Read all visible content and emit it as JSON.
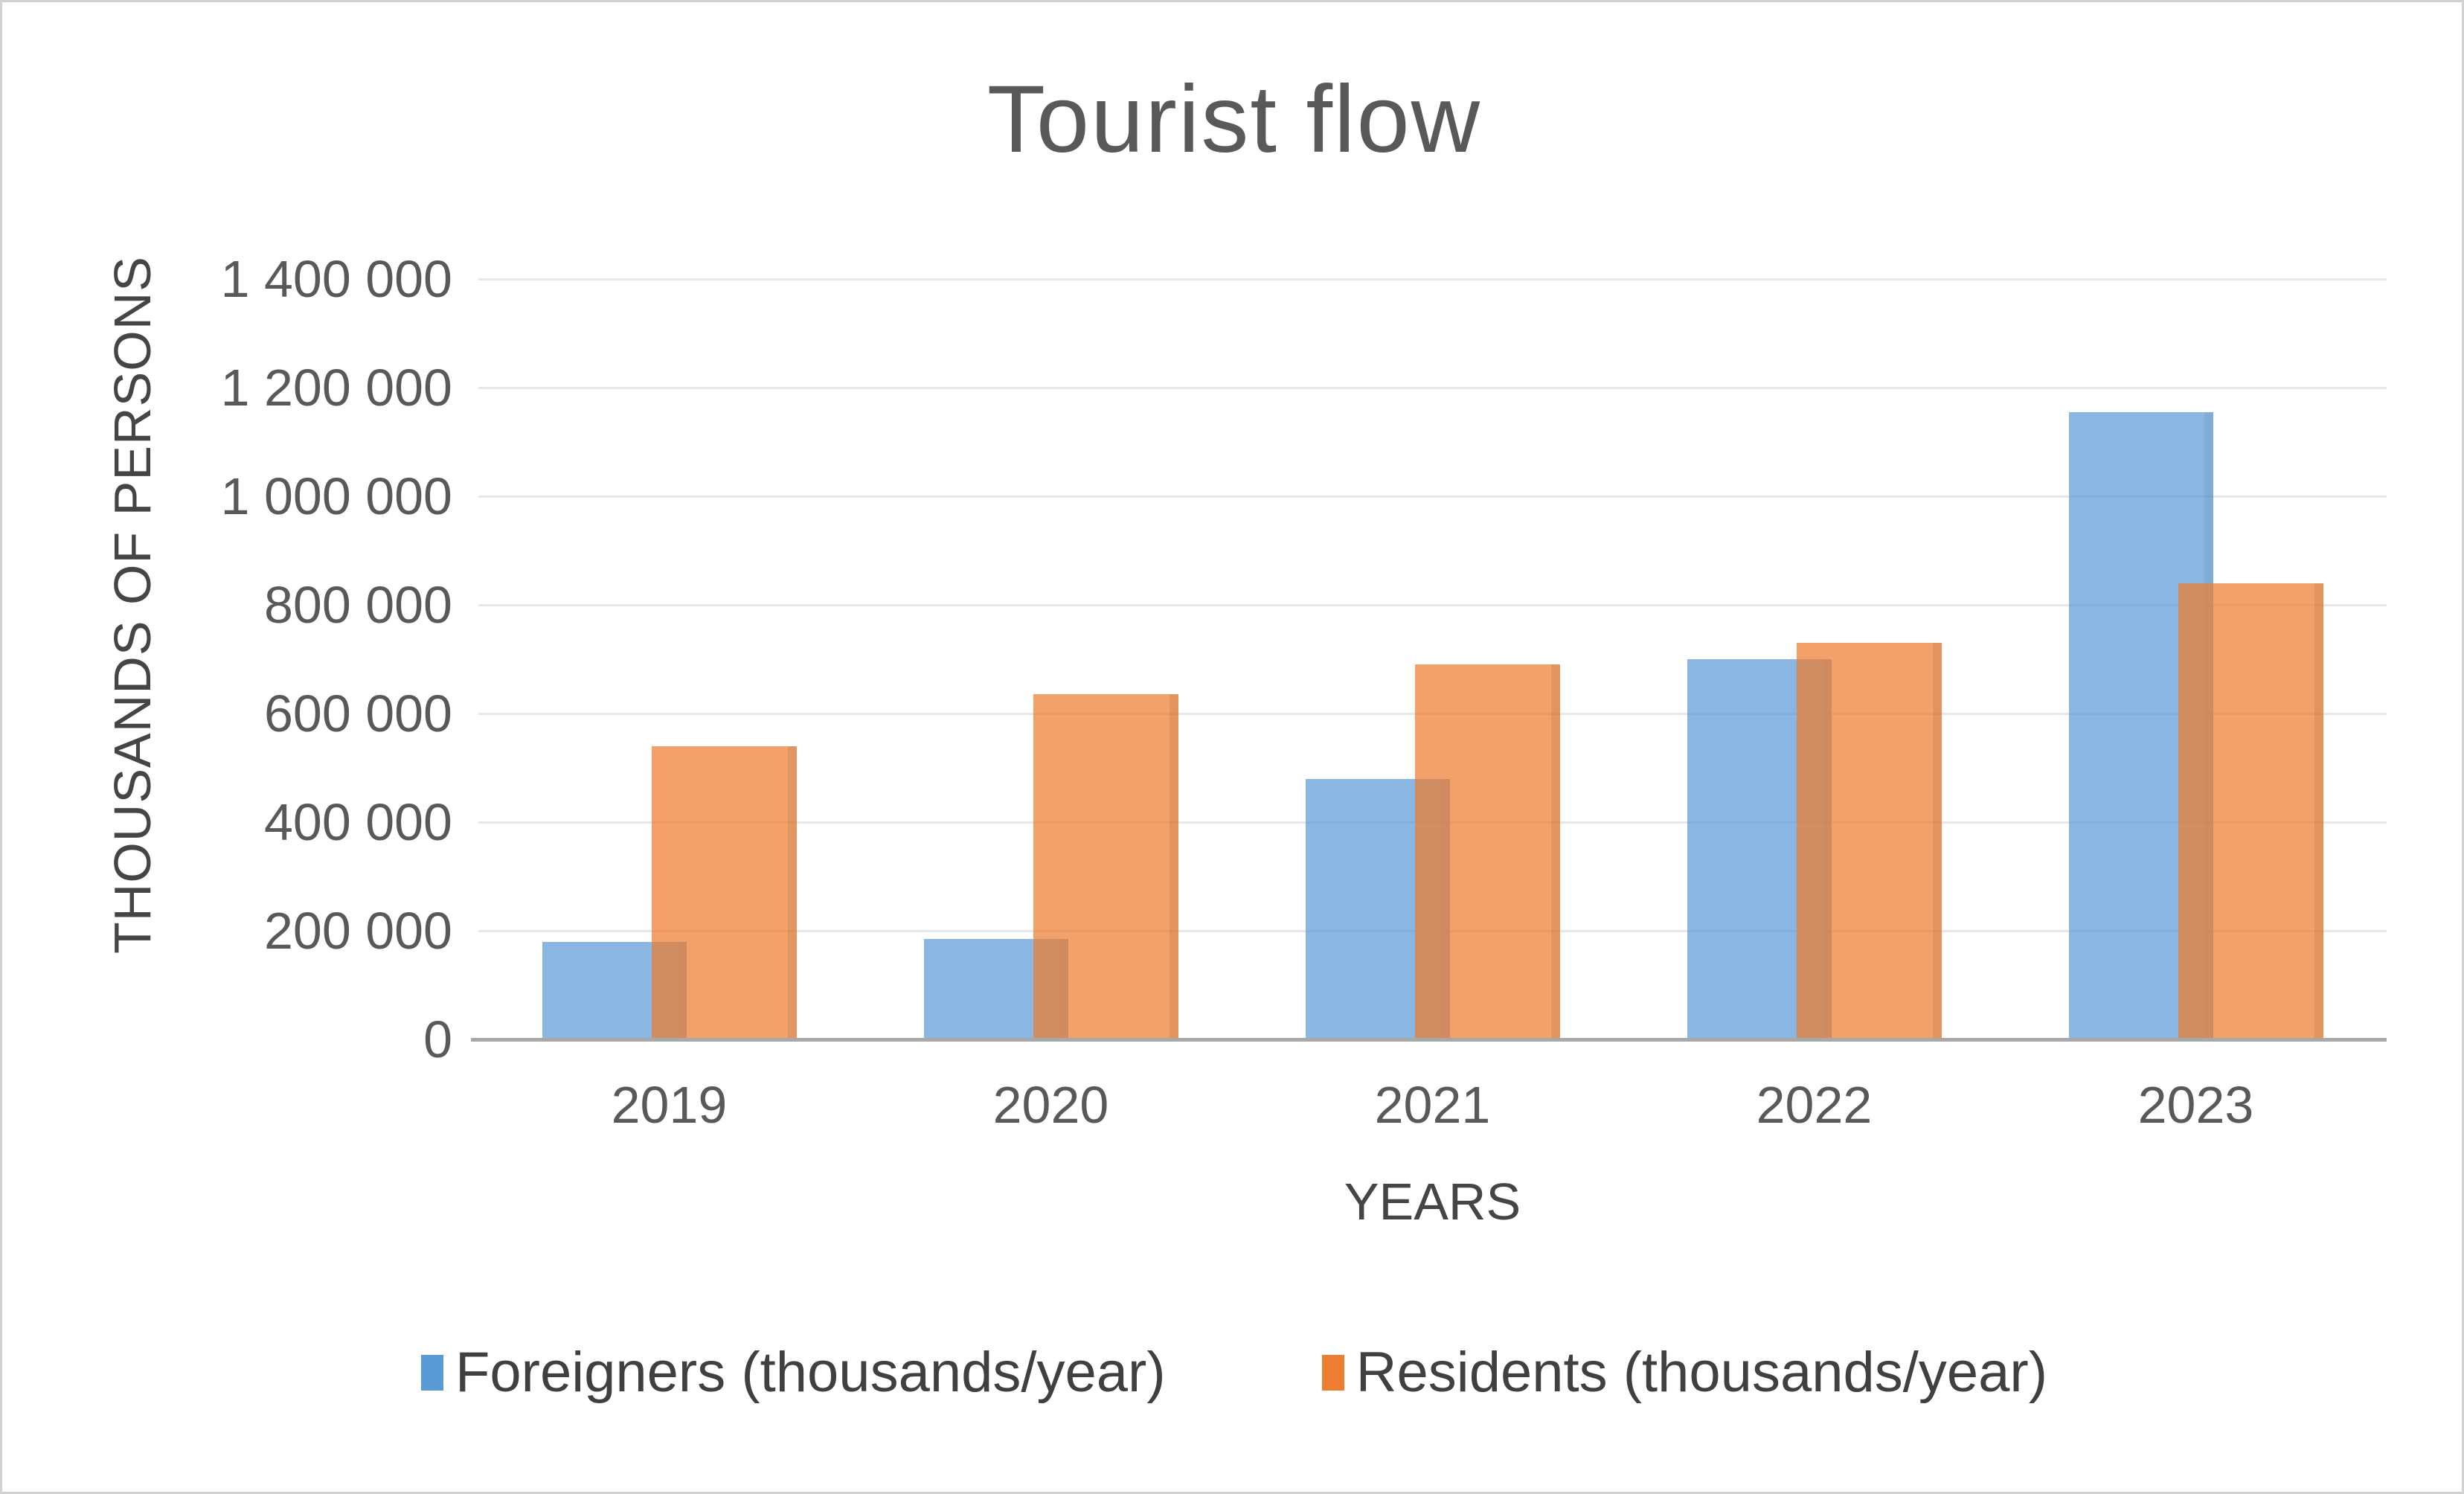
{
  "chart_data": {
    "type": "bar",
    "title": "Tourist flow",
    "xlabel": "YEARS",
    "ylabel": "THOUSANDS OF PERSONS",
    "categories": [
      "2019",
      "2020",
      "2021",
      "2022",
      "2023"
    ],
    "series": [
      {
        "name": "Foreigners (thousands/year)",
        "color": "#5B9BD5",
        "values": [
          180000,
          185000,
          480000,
          700000,
          1155000
        ]
      },
      {
        "name": "Residents (thousands/year)",
        "color": "#ED7D31",
        "values": [
          540000,
          635000,
          690000,
          730000,
          840000
        ]
      }
    ],
    "ylim": [
      0,
      1400000
    ],
    "ytick_step": 200000,
    "ytick_labels": [
      "0",
      "200 000",
      "400 000",
      "600 000",
      "800 000",
      "1 000 000",
      "1 200 000",
      "1 400 000"
    ],
    "grid": "horizontal",
    "legend_position": "bottom"
  },
  "colors": {
    "title_text": "#595959",
    "axis_text": "#595959",
    "gridline": "#e7e7e7",
    "axis_line": "#a8a8a8",
    "foreigners": "#5B9BD5",
    "residents": "#ED7D31"
  }
}
